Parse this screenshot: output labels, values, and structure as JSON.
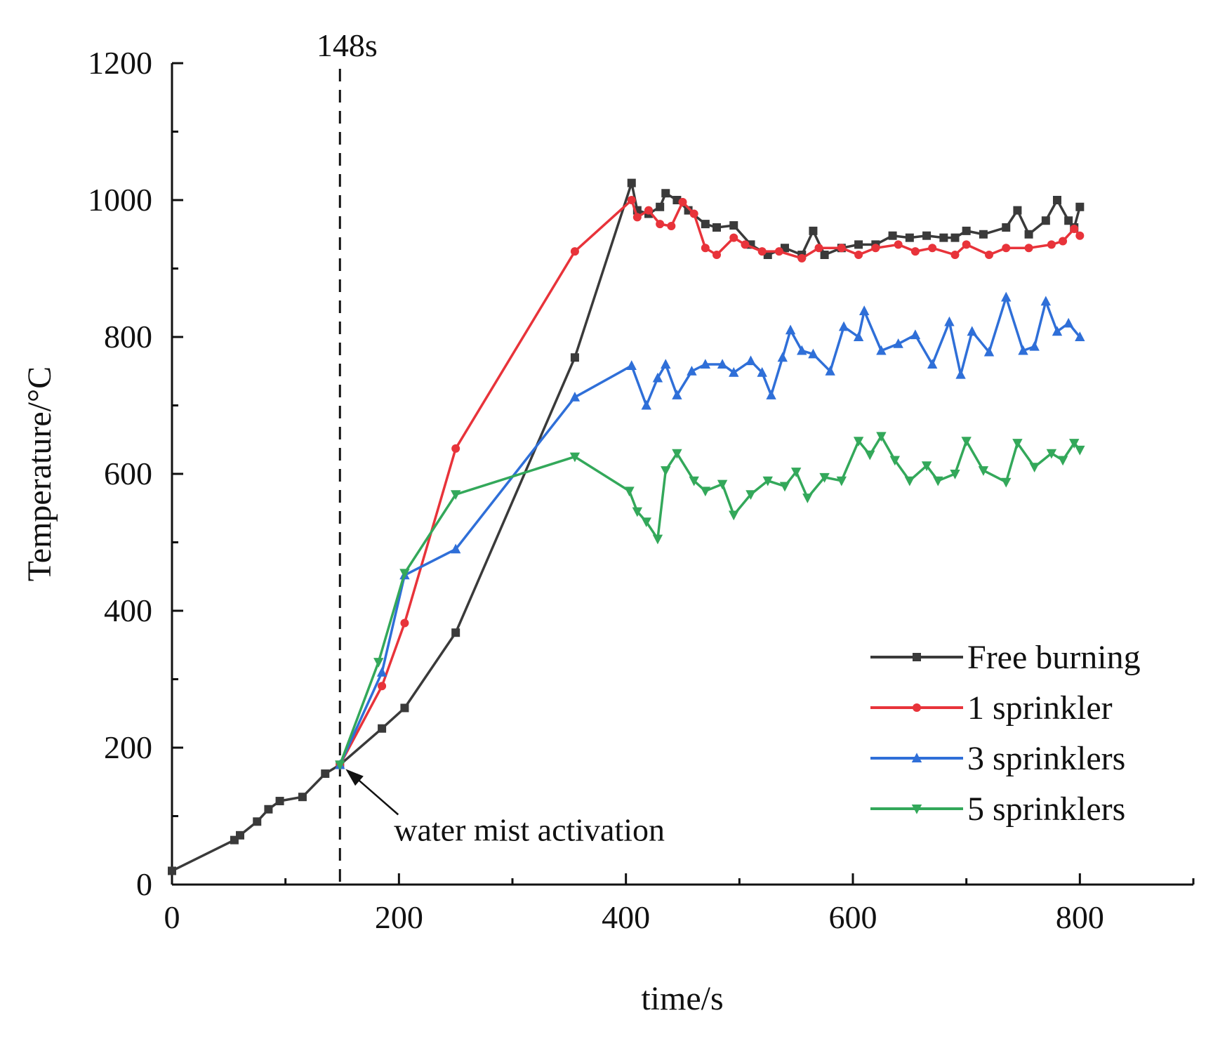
{
  "chart_data": {
    "type": "line",
    "title": "",
    "xlabel": "time/s",
    "ylabel": "Temperature/°C",
    "xlim": [
      0,
      900
    ],
    "ylim": [
      0,
      1200
    ],
    "xticks": [
      0,
      200,
      400,
      600,
      800
    ],
    "yticks": [
      0,
      200,
      400,
      600,
      800,
      1000,
      1200
    ],
    "legend_position": "bottom-right",
    "annotations": {
      "vline_x": 148,
      "vline_label": "148s",
      "activation_text": "water mist activation",
      "activation_point": [
        148,
        175
      ]
    },
    "series": [
      {
        "name": "Free burning",
        "color": "#3a3a3a",
        "marker": "square",
        "points": [
          [
            0,
            20
          ],
          [
            55,
            65
          ],
          [
            60,
            72
          ],
          [
            75,
            92
          ],
          [
            85,
            110
          ],
          [
            95,
            122
          ],
          [
            115,
            128
          ],
          [
            135,
            162
          ],
          [
            148,
            175
          ],
          [
            185,
            228
          ],
          [
            205,
            258
          ],
          [
            250,
            368
          ],
          [
            355,
            770
          ],
          [
            405,
            1025
          ],
          [
            410,
            985
          ],
          [
            420,
            980
          ],
          [
            430,
            990
          ],
          [
            435,
            1010
          ],
          [
            445,
            1000
          ],
          [
            455,
            985
          ],
          [
            470,
            965
          ],
          [
            480,
            960
          ],
          [
            495,
            963
          ],
          [
            510,
            935
          ],
          [
            525,
            920
          ],
          [
            540,
            930
          ],
          [
            555,
            920
          ],
          [
            565,
            955
          ],
          [
            575,
            920
          ],
          [
            590,
            930
          ],
          [
            605,
            935
          ],
          [
            620,
            935
          ],
          [
            635,
            948
          ],
          [
            650,
            945
          ],
          [
            665,
            948
          ],
          [
            680,
            945
          ],
          [
            690,
            945
          ],
          [
            700,
            955
          ],
          [
            715,
            950
          ],
          [
            735,
            960
          ],
          [
            745,
            985
          ],
          [
            755,
            950
          ],
          [
            770,
            970
          ],
          [
            780,
            1000
          ],
          [
            790,
            970
          ],
          [
            795,
            960
          ],
          [
            800,
            990
          ]
        ]
      },
      {
        "name": "1 sprinkler",
        "color": "#e8333a",
        "marker": "circle",
        "points": [
          [
            148,
            175
          ],
          [
            185,
            290
          ],
          [
            205,
            382
          ],
          [
            250,
            637
          ],
          [
            355,
            925
          ],
          [
            405,
            1000
          ],
          [
            410,
            975
          ],
          [
            420,
            985
          ],
          [
            430,
            965
          ],
          [
            440,
            962
          ],
          [
            450,
            997
          ],
          [
            460,
            980
          ],
          [
            470,
            930
          ],
          [
            480,
            920
          ],
          [
            495,
            945
          ],
          [
            505,
            935
          ],
          [
            520,
            925
          ],
          [
            535,
            925
          ],
          [
            555,
            915
          ],
          [
            570,
            930
          ],
          [
            590,
            930
          ],
          [
            605,
            920
          ],
          [
            620,
            930
          ],
          [
            640,
            935
          ],
          [
            655,
            925
          ],
          [
            670,
            930
          ],
          [
            690,
            920
          ],
          [
            700,
            935
          ],
          [
            720,
            920
          ],
          [
            735,
            930
          ],
          [
            755,
            930
          ],
          [
            775,
            935
          ],
          [
            785,
            940
          ],
          [
            795,
            958
          ],
          [
            800,
            948
          ]
        ]
      },
      {
        "name": "3 sprinklers",
        "color": "#2f6fd8",
        "marker": "triangle-up",
        "points": [
          [
            148,
            175
          ],
          [
            185,
            310
          ],
          [
            205,
            452
          ],
          [
            250,
            490
          ],
          [
            355,
            712
          ],
          [
            405,
            758
          ],
          [
            418,
            700
          ],
          [
            428,
            740
          ],
          [
            435,
            760
          ],
          [
            445,
            715
          ],
          [
            458,
            750
          ],
          [
            470,
            760
          ],
          [
            485,
            760
          ],
          [
            495,
            748
          ],
          [
            510,
            765
          ],
          [
            520,
            748
          ],
          [
            528,
            715
          ],
          [
            538,
            770
          ],
          [
            545,
            810
          ],
          [
            555,
            780
          ],
          [
            565,
            775
          ],
          [
            580,
            750
          ],
          [
            592,
            815
          ],
          [
            605,
            800
          ],
          [
            610,
            838
          ],
          [
            625,
            780
          ],
          [
            640,
            790
          ],
          [
            655,
            803
          ],
          [
            670,
            760
          ],
          [
            685,
            822
          ],
          [
            695,
            745
          ],
          [
            705,
            808
          ],
          [
            720,
            778
          ],
          [
            735,
            858
          ],
          [
            750,
            780
          ],
          [
            760,
            786
          ],
          [
            770,
            852
          ],
          [
            780,
            808
          ],
          [
            790,
            820
          ],
          [
            800,
            800
          ]
        ]
      },
      {
        "name": "5 sprinklers",
        "color": "#33a85a",
        "marker": "triangle-down",
        "points": [
          [
            148,
            175
          ],
          [
            182,
            325
          ],
          [
            205,
            455
          ],
          [
            250,
            570
          ],
          [
            355,
            625
          ],
          [
            403,
            575
          ],
          [
            410,
            545
          ],
          [
            418,
            530
          ],
          [
            428,
            505
          ],
          [
            435,
            605
          ],
          [
            445,
            630
          ],
          [
            460,
            590
          ],
          [
            470,
            575
          ],
          [
            485,
            585
          ],
          [
            495,
            540
          ],
          [
            510,
            570
          ],
          [
            525,
            590
          ],
          [
            540,
            582
          ],
          [
            550,
            603
          ],
          [
            560,
            565
          ],
          [
            575,
            595
          ],
          [
            590,
            590
          ],
          [
            605,
            648
          ],
          [
            615,
            628
          ],
          [
            625,
            655
          ],
          [
            637,
            620
          ],
          [
            650,
            590
          ],
          [
            665,
            612
          ],
          [
            675,
            590
          ],
          [
            690,
            600
          ],
          [
            700,
            648
          ],
          [
            715,
            605
          ],
          [
            735,
            588
          ],
          [
            745,
            645
          ],
          [
            760,
            610
          ],
          [
            775,
            630
          ],
          [
            785,
            620
          ],
          [
            795,
            645
          ],
          [
            800,
            635
          ]
        ]
      }
    ]
  }
}
